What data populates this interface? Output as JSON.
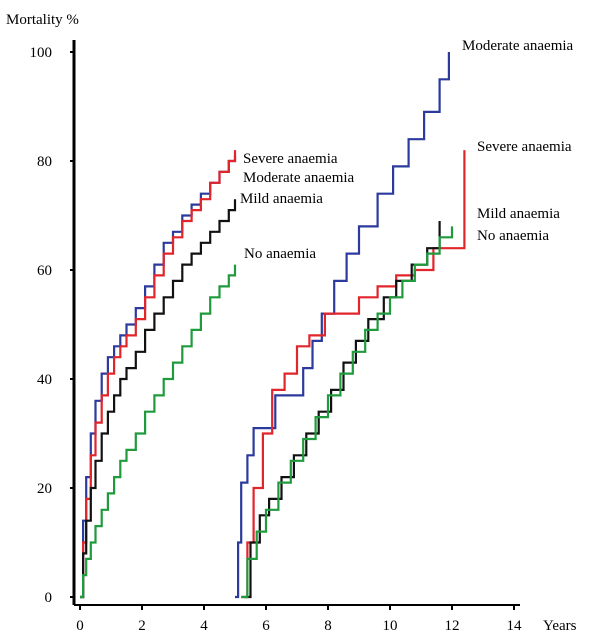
{
  "chart_data": {
    "type": "line",
    "ylabel": "Mortality %",
    "xlabel": "Years",
    "xlim": [
      0,
      14
    ],
    "ylim": [
      0,
      100
    ],
    "x_ticks": [
      0,
      2,
      4,
      6,
      8,
      10,
      12,
      14
    ],
    "y_ticks": [
      0,
      20,
      40,
      60,
      80,
      100
    ],
    "grid": false,
    "legend": "labels placed at the end of each curve",
    "panels": [
      {
        "name": "left",
        "series": [
          {
            "name": "Moderate anaemia",
            "color": "#2b3a9c",
            "x": [
              0,
              0.1,
              0.2,
              0.35,
              0.5,
              0.7,
              0.9,
              1.1,
              1.3,
              1.5,
              1.8,
              2.1,
              2.4,
              2.7,
              3.0,
              3.3,
              3.6,
              3.9,
              4.2,
              4.5,
              4.8,
              5.0
            ],
            "y": [
              0,
              14,
              22,
              30,
              36,
              41,
              44,
              46,
              48,
              50,
              53,
              57,
              61,
              65,
              67,
              70,
              72,
              74,
              76,
              78,
              80,
              81
            ]
          },
          {
            "name": "Severe anaemia",
            "color": "#e0252b",
            "x": [
              0,
              0.1,
              0.2,
              0.35,
              0.5,
              0.7,
              0.9,
              1.1,
              1.3,
              1.5,
              1.8,
              2.1,
              2.4,
              2.7,
              3.0,
              3.3,
              3.6,
              3.9,
              4.2,
              4.5,
              4.8,
              5.0
            ],
            "y": [
              0,
              10,
              18,
              26,
              32,
              37,
              41,
              44,
              46,
              48,
              51,
              55,
              59,
              63,
              66,
              69,
              71,
              73,
              76,
              78,
              80,
              82
            ]
          },
          {
            "name": "Mild anaemia",
            "color": "#111111",
            "x": [
              0,
              0.1,
              0.2,
              0.35,
              0.5,
              0.7,
              0.9,
              1.1,
              1.3,
              1.5,
              1.8,
              2.1,
              2.4,
              2.7,
              3.0,
              3.3,
              3.6,
              3.9,
              4.2,
              4.5,
              4.8,
              5.0
            ],
            "y": [
              0,
              8,
              14,
              20,
              25,
              30,
              34,
              37,
              40,
              42,
              45,
              49,
              52,
              55,
              58,
              61,
              63,
              65,
              67,
              69,
              71,
              73
            ]
          },
          {
            "name": "No anaemia",
            "color": "#1f9a3c",
            "x": [
              0,
              0.1,
              0.2,
              0.35,
              0.5,
              0.7,
              0.9,
              1.1,
              1.3,
              1.5,
              1.8,
              2.1,
              2.4,
              2.7,
              3.0,
              3.3,
              3.6,
              3.9,
              4.2,
              4.5,
              4.8,
              5.0
            ],
            "y": [
              0,
              4,
              7,
              10,
              13,
              16,
              19,
              22,
              25,
              27,
              30,
              34,
              37,
              40,
              43,
              46,
              49,
              52,
              55,
              57,
              59,
              61
            ]
          }
        ]
      },
      {
        "name": "right",
        "series": [
          {
            "name": "Moderate anaemia",
            "color": "#2b3a9c",
            "x": [
              5.0,
              5.1,
              5.2,
              5.4,
              5.6,
              5.9,
              6.3,
              6.8,
              7.2,
              7.5,
              7.8,
              8.2,
              8.6,
              9.0,
              9.6,
              10.1,
              10.6,
              11.1,
              11.6,
              11.9
            ],
            "y": [
              0,
              10,
              21,
              26,
              31,
              31,
              37,
              37,
              42,
              47,
              52,
              58,
              63,
              68,
              74,
              79,
              84,
              89,
              95,
              100
            ]
          },
          {
            "name": "Severe anaemia",
            "color": "#e0252b",
            "x": [
              5.2,
              5.4,
              5.6,
              5.9,
              6.2,
              6.6,
              7.0,
              7.4,
              7.9,
              8.4,
              9.0,
              9.6,
              10.2,
              10.8,
              11.4,
              12.0,
              12.4
            ],
            "y": [
              0,
              10,
              20,
              30,
              38,
              41,
              46,
              48,
              52,
              52,
              55,
              57,
              59,
              60,
              64,
              64,
              82
            ]
          },
          {
            "name": "Mild anaemia",
            "color": "#111111",
            "x": [
              5.3,
              5.5,
              5.8,
              6.1,
              6.5,
              6.9,
              7.3,
              7.7,
              8.1,
              8.5,
              8.9,
              9.3,
              9.8,
              10.2,
              10.7,
              11.2,
              11.6
            ],
            "y": [
              0,
              10,
              15,
              18,
              22,
              26,
              30,
              34,
              38,
              43,
              47,
              51,
              55,
              58,
              61,
              64,
              69
            ]
          },
          {
            "name": "No anaemia",
            "color": "#1f9a3c",
            "x": [
              5.2,
              5.4,
              5.7,
              6.0,
              6.4,
              6.8,
              7.2,
              7.6,
              8.0,
              8.4,
              8.8,
              9.2,
              9.6,
              10.0,
              10.4,
              10.8,
              11.2,
              11.6,
              12.0
            ],
            "y": [
              0,
              7,
              12,
              16,
              21,
              25,
              29,
              33,
              37,
              41,
              45,
              49,
              52,
              55,
              58,
              61,
              63,
              66,
              68
            ]
          }
        ]
      }
    ],
    "series_labels": {
      "left": [
        "Severe anaemia",
        "Moderate anaemia",
        "Mild anaemia",
        "No anaemia"
      ],
      "right": [
        "Moderate anaemia",
        "Severe anaemia",
        "Mild anaemia",
        "No anaemia"
      ]
    }
  }
}
